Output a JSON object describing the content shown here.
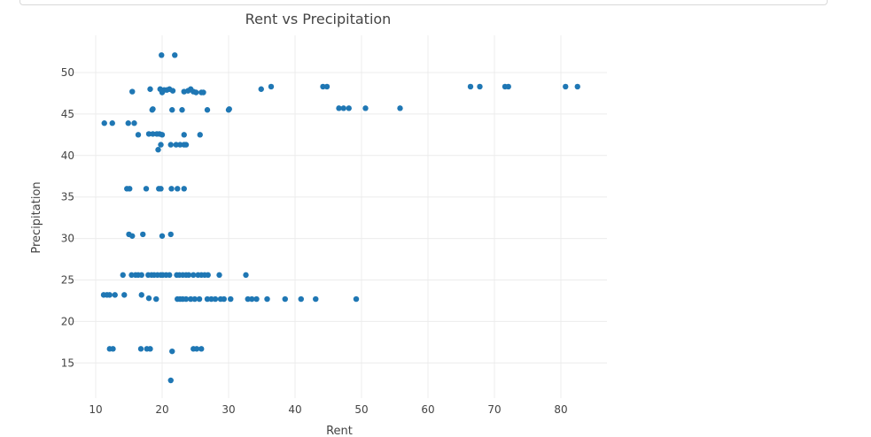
{
  "chart_data": {
    "type": "scatter",
    "title": "Rent vs Precipitation",
    "xlabel": "Rent",
    "ylabel": "Precipitation",
    "xlim": [
      6,
      87
    ],
    "ylim": [
      12,
      55
    ],
    "xticks": [
      10,
      20,
      30,
      40,
      50,
      60,
      70,
      80
    ],
    "yticks": [
      15,
      20,
      25,
      30,
      35,
      40,
      45,
      50
    ],
    "grid": true,
    "marker_color": "#1f77b4",
    "points": [
      [
        19.9,
        52.1
      ],
      [
        21.9,
        52.1
      ],
      [
        19.7,
        48.0
      ],
      [
        20.3,
        47.9
      ],
      [
        20.7,
        47.9
      ],
      [
        21.1,
        48.0
      ],
      [
        21.6,
        47.8
      ],
      [
        20.0,
        47.6
      ],
      [
        18.2,
        48.0
      ],
      [
        15.5,
        47.7
      ],
      [
        23.3,
        47.7
      ],
      [
        23.9,
        47.8
      ],
      [
        24.3,
        48.0
      ],
      [
        24.7,
        47.7
      ],
      [
        25.1,
        47.6
      ],
      [
        25.9,
        47.6
      ],
      [
        26.2,
        47.6
      ],
      [
        34.9,
        48.0
      ],
      [
        36.4,
        48.3
      ],
      [
        44.2,
        48.3
      ],
      [
        44.8,
        48.3
      ],
      [
        66.4,
        48.3
      ],
      [
        67.8,
        48.3
      ],
      [
        71.6,
        48.3
      ],
      [
        72.1,
        48.3
      ],
      [
        80.7,
        48.3
      ],
      [
        82.5,
        48.3
      ],
      [
        46.6,
        45.7
      ],
      [
        47.3,
        45.7
      ],
      [
        48.1,
        45.7
      ],
      [
        50.6,
        45.7
      ],
      [
        55.8,
        45.7
      ],
      [
        18.5,
        45.5
      ],
      [
        18.6,
        45.6
      ],
      [
        21.5,
        45.5
      ],
      [
        23.0,
        45.5
      ],
      [
        26.8,
        45.5
      ],
      [
        30.0,
        45.5
      ],
      [
        30.1,
        45.6
      ],
      [
        11.3,
        43.9
      ],
      [
        12.5,
        43.9
      ],
      [
        14.9,
        43.9
      ],
      [
        15.8,
        43.9
      ],
      [
        16.4,
        42.5
      ],
      [
        18.0,
        42.6
      ],
      [
        18.6,
        42.6
      ],
      [
        19.2,
        42.6
      ],
      [
        19.6,
        42.6
      ],
      [
        20.0,
        42.5
      ],
      [
        23.3,
        42.5
      ],
      [
        25.7,
        42.5
      ],
      [
        19.8,
        41.3
      ],
      [
        21.3,
        41.3
      ],
      [
        22.1,
        41.3
      ],
      [
        22.7,
        41.3
      ],
      [
        23.3,
        41.3
      ],
      [
        23.6,
        41.3
      ],
      [
        19.4,
        40.7
      ],
      [
        14.7,
        36.0
      ],
      [
        15.1,
        36.0
      ],
      [
        17.6,
        36.0
      ],
      [
        19.5,
        36.0
      ],
      [
        19.8,
        36.0
      ],
      [
        21.4,
        36.0
      ],
      [
        22.3,
        36.0
      ],
      [
        23.3,
        36.0
      ],
      [
        15.0,
        30.5
      ],
      [
        15.5,
        30.3
      ],
      [
        17.1,
        30.5
      ],
      [
        20.0,
        30.3
      ],
      [
        21.3,
        30.5
      ],
      [
        14.1,
        25.6
      ],
      [
        15.4,
        25.6
      ],
      [
        16.0,
        25.6
      ],
      [
        16.4,
        25.6
      ],
      [
        16.9,
        25.6
      ],
      [
        17.9,
        25.6
      ],
      [
        18.4,
        25.6
      ],
      [
        18.8,
        25.6
      ],
      [
        19.3,
        25.6
      ],
      [
        19.8,
        25.6
      ],
      [
        20.1,
        25.6
      ],
      [
        20.6,
        25.6
      ],
      [
        21.1,
        25.6
      ],
      [
        22.2,
        25.6
      ],
      [
        22.6,
        25.6
      ],
      [
        23.1,
        25.6
      ],
      [
        23.6,
        25.6
      ],
      [
        24.0,
        25.6
      ],
      [
        24.7,
        25.6
      ],
      [
        25.4,
        25.6
      ],
      [
        25.9,
        25.6
      ],
      [
        26.4,
        25.6
      ],
      [
        26.9,
        25.6
      ],
      [
        28.6,
        25.6
      ],
      [
        32.6,
        25.6
      ],
      [
        11.2,
        23.2
      ],
      [
        11.7,
        23.2
      ],
      [
        12.1,
        23.2
      ],
      [
        12.9,
        23.2
      ],
      [
        14.3,
        23.2
      ],
      [
        16.9,
        23.2
      ],
      [
        18.0,
        22.8
      ],
      [
        19.1,
        22.7
      ],
      [
        22.3,
        22.7
      ],
      [
        22.7,
        22.7
      ],
      [
        23.1,
        22.7
      ],
      [
        23.6,
        22.7
      ],
      [
        24.3,
        22.7
      ],
      [
        24.9,
        22.7
      ],
      [
        25.6,
        22.7
      ],
      [
        26.8,
        22.7
      ],
      [
        27.4,
        22.7
      ],
      [
        28.0,
        22.7
      ],
      [
        28.8,
        22.7
      ],
      [
        29.3,
        22.7
      ],
      [
        30.3,
        22.7
      ],
      [
        32.9,
        22.7
      ],
      [
        33.5,
        22.7
      ],
      [
        34.2,
        22.7
      ],
      [
        35.8,
        22.7
      ],
      [
        38.5,
        22.7
      ],
      [
        40.9,
        22.7
      ],
      [
        43.1,
        22.7
      ],
      [
        49.2,
        22.7
      ],
      [
        12.1,
        16.7
      ],
      [
        12.6,
        16.7
      ],
      [
        16.8,
        16.7
      ],
      [
        17.7,
        16.7
      ],
      [
        18.2,
        16.7
      ],
      [
        24.7,
        16.7
      ],
      [
        25.2,
        16.7
      ],
      [
        25.9,
        16.7
      ],
      [
        21.5,
        16.4
      ],
      [
        21.3,
        12.9
      ]
    ]
  }
}
